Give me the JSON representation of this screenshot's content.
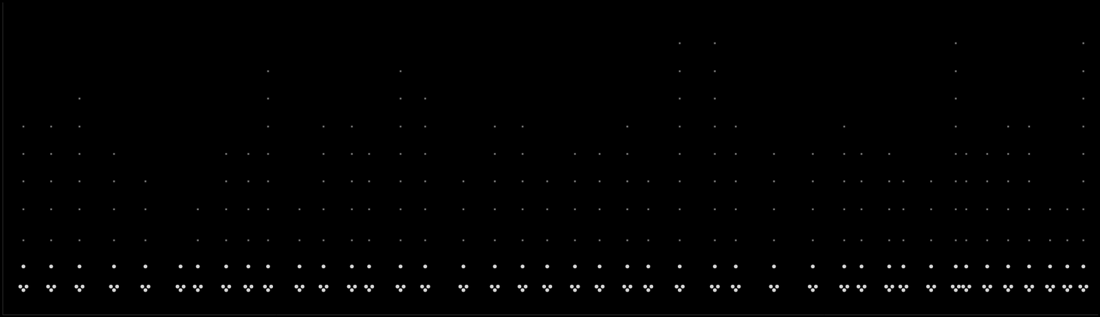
{
  "chart_data": {
    "type": "scatter",
    "xlim": [
      0,
      1777
    ],
    "ylim": [
      0,
      513
    ],
    "grid": false,
    "tick_labels": false,
    "series": [
      {
        "color": "#d8d8d8",
        "marker": "circle",
        "x": [
          29,
          34,
          39,
          34,
          74,
          79,
          84,
          79,
          120,
          125,
          130,
          125,
          176,
          181,
          186,
          181,
          227,
          232,
          237,
          232,
          284,
          289,
          294,
          289,
          312,
          317,
          322,
          317,
          358,
          363,
          368,
          363,
          394,
          399,
          404,
          399,
          426,
          431,
          436,
          431,
          477,
          482,
          487,
          482,
          516,
          521,
          526,
          521,
          562,
          567,
          572,
          567,
          590,
          595,
          600,
          595,
          641,
          646,
          651,
          646,
          681,
          686,
          691,
          686,
          743,
          748,
          753,
          748,
          794,
          799,
          804,
          799,
          839,
          844,
          849,
          844,
          879,
          884,
          889,
          884,
          924,
          929,
          934,
          929,
          964,
          969,
          974,
          969,
          1009,
          1014,
          1019,
          1014,
          1043,
          1048,
          1053,
          1048,
          1094,
          1099,
          1104,
          1099,
          1151,
          1156,
          1161,
          1156,
          1185,
          1190,
          1195,
          1190,
          1247,
          1252,
          1257,
          1252,
          1310,
          1315,
          1320,
          1315,
          1361,
          1366,
          1371,
          1366,
          1389,
          1394,
          1399,
          1394,
          1434,
          1439,
          1444,
          1439,
          1457,
          1462,
          1467,
          1462,
          1502,
          1507,
          1512,
          1507,
          1542,
          1547,
          1552,
          1547,
          1559,
          1564,
          1569,
          1564,
          1593,
          1598,
          1603,
          1598,
          1627,
          1632,
          1637,
          1632,
          1661,
          1666,
          1671,
          1666,
          1695,
          1700,
          1705,
          1700,
          1723,
          1728,
          1733,
          1728,
          1749,
          1754,
          1759,
          1754
        ],
        "values": [
          46,
          40,
          46,
          79,
          46,
          40,
          46,
          79,
          46,
          40,
          46,
          79,
          46,
          40,
          46,
          79,
          46,
          40,
          46,
          79,
          46,
          40,
          46,
          79,
          46,
          40,
          46,
          79,
          46,
          40,
          46,
          79,
          46,
          40,
          46,
          79,
          46,
          40,
          46,
          79,
          46,
          40,
          46,
          79,
          46,
          40,
          46,
          79,
          46,
          40,
          46,
          79,
          46,
          40,
          46,
          79,
          46,
          40,
          46,
          79,
          46,
          40,
          46,
          79,
          46,
          40,
          46,
          79,
          46,
          40,
          46,
          79,
          46,
          40,
          46,
          79,
          46,
          40,
          46,
          79,
          46,
          40,
          46,
          79,
          46,
          40,
          46,
          79,
          46,
          40,
          46,
          79,
          46,
          40,
          46,
          79,
          46,
          40,
          46,
          79,
          46,
          40,
          46,
          79,
          46,
          40,
          46,
          79,
          46,
          40,
          46,
          79,
          46,
          40,
          46,
          79,
          46,
          40,
          46,
          79,
          46,
          40,
          46,
          79,
          46,
          40,
          46,
          79,
          46,
          40,
          46,
          79,
          46,
          40,
          46,
          79,
          46,
          40,
          46,
          79,
          46,
          40,
          46,
          79,
          46,
          40,
          46,
          79,
          46,
          40,
          46,
          79,
          46,
          40,
          46,
          79,
          46,
          40,
          46,
          79,
          46,
          40,
          46,
          79,
          46,
          40,
          46,
          79
        ]
      },
      {
        "color": "#7a7a7a",
        "marker": "square",
        "x": [
          34,
          34,
          34,
          34,
          34,
          79,
          79,
          79,
          79,
          79,
          125,
          125,
          125,
          125,
          125,
          125,
          181,
          181,
          181,
          181,
          232,
          232,
          232,
          317,
          317,
          363,
          363,
          363,
          363,
          399,
          399,
          399,
          399,
          431,
          431,
          431,
          431,
          431,
          431,
          431,
          482,
          482,
          521,
          521,
          521,
          521,
          521,
          567,
          567,
          567,
          567,
          567,
          595,
          595,
          595,
          595,
          646,
          646,
          646,
          646,
          646,
          646,
          646,
          686,
          686,
          686,
          686,
          686,
          686,
          748,
          748,
          748,
          799,
          799,
          799,
          799,
          799,
          844,
          844,
          844,
          844,
          844,
          884,
          884,
          884,
          929,
          929,
          929,
          929,
          969,
          969,
          969,
          969,
          1014,
          1014,
          1014,
          1014,
          1014,
          1048,
          1048,
          1048,
          1099,
          1099,
          1099,
          1099,
          1099,
          1099,
          1099,
          1099,
          1156,
          1156,
          1156,
          1156,
          1156,
          1156,
          1156,
          1156,
          1190,
          1190,
          1190,
          1190,
          1190,
          1252,
          1252,
          1252,
          1252,
          1315,
          1315,
          1315,
          1315,
          1366,
          1366,
          1366,
          1366,
          1366,
          1394,
          1394,
          1394,
          1394,
          1439,
          1439,
          1439,
          1439,
          1462,
          1462,
          1462,
          1507,
          1507,
          1507,
          1547,
          1547,
          1547,
          1547,
          1547,
          1547,
          1547,
          1547,
          1564,
          1564,
          1564,
          1564,
          1598,
          1598,
          1598,
          1598,
          1632,
          1632,
          1632,
          1632,
          1632,
          1666,
          1666,
          1666,
          1666,
          1666,
          1700,
          1700,
          1728,
          1728,
          1754,
          1754,
          1754,
          1754,
          1754,
          1754,
          1754,
          1754
        ],
        "values": [
          122,
          173,
          219,
          264,
          309,
          122,
          173,
          219,
          264,
          309,
          122,
          173,
          219,
          264,
          309,
          355,
          122,
          173,
          219,
          264,
          122,
          173,
          219,
          122,
          173,
          122,
          173,
          219,
          264,
          122,
          173,
          219,
          264,
          122,
          173,
          219,
          264,
          309,
          355,
          400,
          122,
          173,
          122,
          173,
          219,
          264,
          309,
          122,
          173,
          219,
          264,
          309,
          122,
          173,
          219,
          264,
          122,
          173,
          219,
          264,
          309,
          355,
          400,
          122,
          173,
          219,
          264,
          309,
          355,
          122,
          173,
          219,
          122,
          173,
          219,
          264,
          309,
          122,
          173,
          219,
          264,
          309,
          122,
          173,
          219,
          122,
          173,
          219,
          264,
          122,
          173,
          219,
          264,
          122,
          173,
          219,
          264,
          309,
          122,
          173,
          219,
          122,
          173,
          219,
          264,
          309,
          355,
          400,
          446,
          122,
          173,
          219,
          264,
          309,
          355,
          400,
          446,
          122,
          173,
          219,
          264,
          309,
          122,
          173,
          219,
          264,
          122,
          173,
          219,
          264,
          122,
          173,
          219,
          264,
          309,
          122,
          173,
          219,
          264,
          122,
          173,
          219,
          264,
          122,
          173,
          219,
          122,
          173,
          219,
          122,
          173,
          219,
          264,
          309,
          355,
          400,
          446,
          122,
          173,
          219,
          264,
          122,
          173,
          219,
          264,
          122,
          173,
          219,
          264,
          309,
          122,
          173,
          219,
          264,
          309,
          122,
          173,
          122,
          173,
          122,
          173,
          219,
          264,
          309,
          355,
          400,
          446
        ]
      }
    ]
  }
}
